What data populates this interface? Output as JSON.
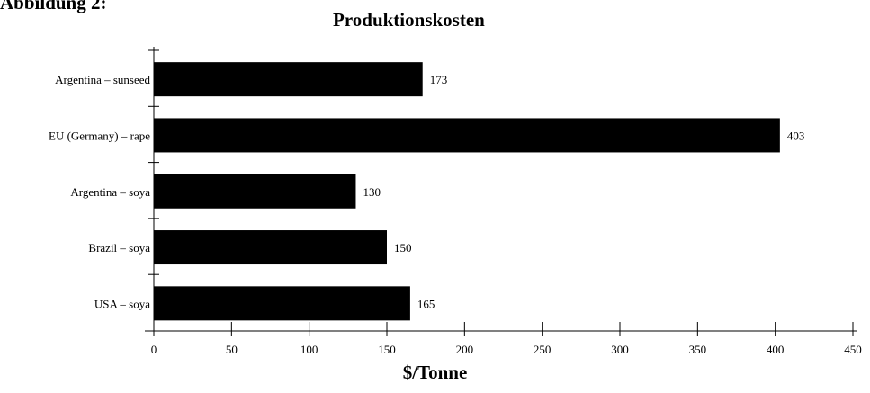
{
  "page_heading": "Abbildung 2:",
  "chart_data": {
    "type": "bar",
    "orientation": "horizontal",
    "title": "Produktionskosten",
    "xlabel": "$/Tonne",
    "ylabel": "",
    "categories": [
      "Argentina – sunseed",
      "EU (Germany) – rape",
      "Argentina – soya",
      "Brazil – soya",
      "USA – soya"
    ],
    "values": [
      173,
      403,
      130,
      150,
      165
    ],
    "data_labels": [
      "173",
      "403",
      "130",
      "150",
      "165"
    ],
    "xlim": [
      0,
      450
    ],
    "xticks": [
      0,
      50,
      100,
      150,
      200,
      250,
      300,
      350,
      400,
      450
    ],
    "grid": false,
    "legend": "none",
    "bar_color": "#000000"
  }
}
